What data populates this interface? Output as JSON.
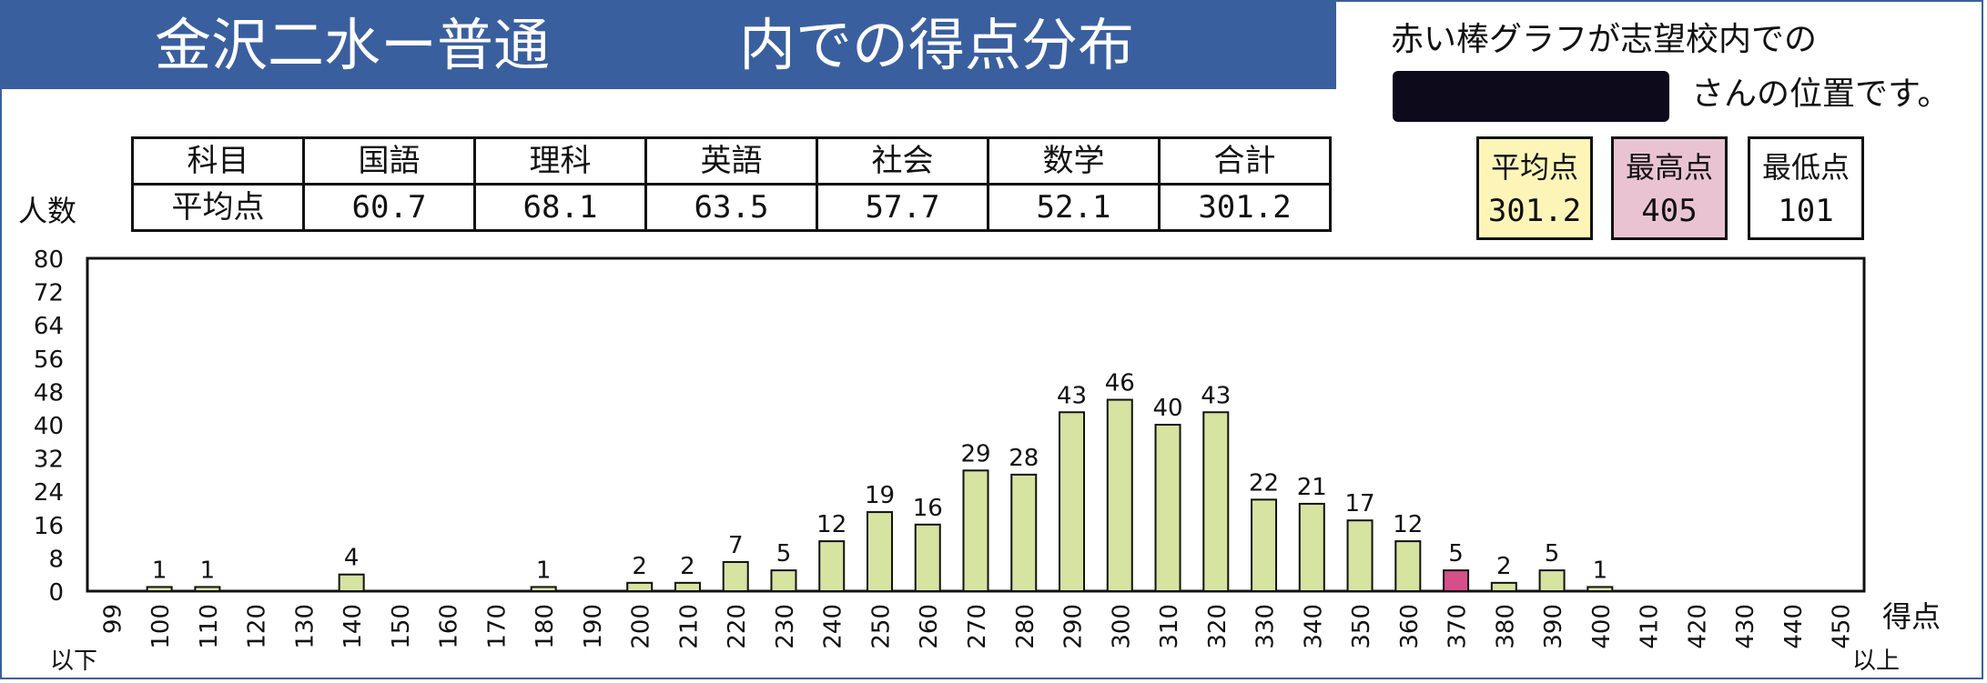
{
  "title": {
    "left": "金沢二水ー普通",
    "right": "内での得点分布"
  },
  "note": {
    "line1": "赤い棒グラフが志望校内での",
    "line2": "さんの位置です。"
  },
  "summary": {
    "headers": [
      "科目",
      "国語",
      "理科",
      "英語",
      "社会",
      "数学",
      "合計"
    ],
    "row_label": "平均点",
    "values": [
      "60.7",
      "68.1",
      "63.5",
      "57.7",
      "52.1",
      "301.2"
    ]
  },
  "stats": {
    "avg_label": "平均点",
    "avg_value": "301.2",
    "max_label": "最高点",
    "max_value": "405",
    "min_label": "最低点",
    "min_value": "101"
  },
  "axis_text": {
    "ylabel": "人数",
    "xlabel": "得点",
    "below": "以下",
    "above": "以上"
  },
  "colors": {
    "bar": "#d6e3a1",
    "highlight": "#d64f8a",
    "title_bg": "#3a5f9f",
    "avg_bg": "#fdf5b8",
    "max_bg": "#eac3d2"
  },
  "chart_data": {
    "type": "bar",
    "title": "",
    "xlabel": "得点",
    "ylabel": "人数",
    "ylim": [
      0,
      80
    ],
    "yticks": [
      "0",
      "8",
      "16",
      "24",
      "32",
      "40",
      "48",
      "56",
      "64",
      "72",
      "80"
    ],
    "categories": [
      "99",
      "100",
      "110",
      "120",
      "130",
      "140",
      "150",
      "160",
      "170",
      "180",
      "190",
      "200",
      "210",
      "220",
      "230",
      "240",
      "250",
      "260",
      "270",
      "280",
      "290",
      "300",
      "310",
      "320",
      "330",
      "340",
      "350",
      "360",
      "370",
      "380",
      "390",
      "400",
      "410",
      "420",
      "430",
      "440",
      "450"
    ],
    "values": [
      0,
      1,
      1,
      0,
      0,
      4,
      0,
      0,
      0,
      1,
      0,
      2,
      2,
      7,
      5,
      12,
      19,
      16,
      29,
      28,
      43,
      46,
      40,
      43,
      22,
      21,
      17,
      12,
      5,
      2,
      5,
      1,
      0,
      0,
      0,
      0,
      0
    ],
    "highlight_category": "370",
    "grid": false
  }
}
